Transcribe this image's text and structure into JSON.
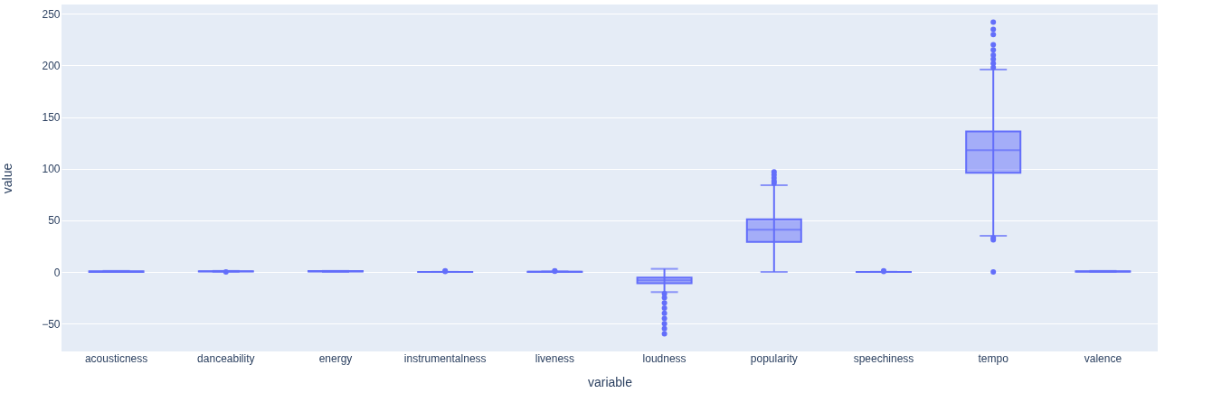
{
  "chart_data": {
    "type": "box",
    "xlabel": "variable",
    "ylabel": "value",
    "categories": [
      "acousticness",
      "danceability",
      "energy",
      "instrumentalness",
      "liveness",
      "loudness",
      "popularity",
      "speechiness",
      "tempo",
      "valence"
    ],
    "series": [
      {
        "color": "#636efa",
        "boxes": [
          {
            "low": 0,
            "q1": 0.1,
            "median": 0.3,
            "q3": 0.7,
            "high": 1
          },
          {
            "low": 0.1,
            "q1": 0.45,
            "median": 0.57,
            "q3": 0.68,
            "high": 1,
            "outliers": [
              0
            ]
          },
          {
            "low": 0,
            "q1": 0.4,
            "median": 0.6,
            "q3": 0.8,
            "high": 1
          },
          {
            "low": 0,
            "q1": 0,
            "median": 0,
            "q3": 0.05,
            "high": 0.1,
            "outliers": [
              0.5,
              1
            ]
          },
          {
            "low": 0,
            "q1": 0.1,
            "median": 0.13,
            "q3": 0.25,
            "high": 0.5,
            "outliers": [
              0.7,
              1
            ]
          },
          {
            "low": -19.5,
            "q1": -11,
            "median": -8,
            "q3": -5.5,
            "high": 3,
            "outliers": [
              -21,
              -25,
              -30,
              -35,
              -40,
              -45,
              -50,
              -55,
              -60
            ]
          },
          {
            "low": 0,
            "q1": 29,
            "median": 41,
            "q3": 51,
            "high": 84,
            "outliers": [
              86,
              88,
              91,
              94,
              97
            ]
          },
          {
            "low": 0,
            "q1": 0.04,
            "median": 0.05,
            "q3": 0.08,
            "high": 0.15,
            "outliers": [
              0.5,
              1
            ]
          },
          {
            "low": 35,
            "q1": 96,
            "median": 118,
            "q3": 136,
            "high": 196,
            "outliers": [
              0,
              31,
              33,
              198,
              202,
              206,
              210,
              215,
              220,
              230,
              235,
              242
            ]
          },
          {
            "low": 0,
            "q1": 0.3,
            "median": 0.5,
            "q3": 0.7,
            "high": 1
          }
        ]
      }
    ],
    "ylim": [
      -77,
      259
    ],
    "yticks": [
      -50,
      0,
      50,
      100,
      150,
      200,
      250
    ],
    "grid": "y"
  }
}
